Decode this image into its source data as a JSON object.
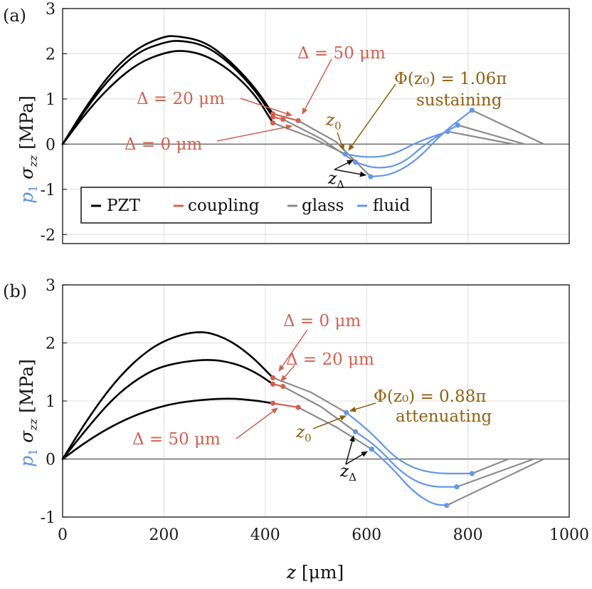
{
  "colors": {
    "pzt": "#000000",
    "coupling": "#D4614F",
    "glass": "#8C8C8C",
    "fluid": "#6497E8",
    "annot_brown": "#935F0E",
    "p1_blue": "#5B8FE6",
    "grid": "#DDDDDD",
    "zero_line": "#6E6E6E"
  },
  "axis_labels": {
    "y_p1": "p",
    "y_p1_sub": "1",
    "y_sigma": "σ",
    "y_sigma_sub": "zz",
    "y_unit": "[MPa]",
    "x_var": "z",
    "x_unit": "[μm]"
  },
  "legend": {
    "items": [
      {
        "label": "PZT",
        "color": "#000000"
      },
      {
        "label": "coupling",
        "color": "#D4614F"
      },
      {
        "label": "glass",
        "color": "#8C8C8C"
      },
      {
        "label": "fluid",
        "color": "#6497E8"
      }
    ]
  },
  "chart_data": [
    {
      "panel": "(a)",
      "type": "line",
      "xlim": [
        0,
        1000
      ],
      "ylim": [
        -2.2,
        3
      ],
      "yticks": [
        "3",
        "2",
        "1",
        "0",
        "-1",
        "-2"
      ],
      "xticks": [],
      "grid": true,
      "legend_placement": "lower-left",
      "series": [
        {
          "material": "PZT",
          "delta_um": 0,
          "x": [
            0,
            50,
            100,
            150,
            200,
            235,
            280,
            330,
            380,
            415
          ],
          "y": [
            0,
            0.75,
            1.35,
            1.8,
            2.02,
            2.08,
            1.98,
            1.65,
            1.1,
            0.47
          ]
        },
        {
          "material": "PZT",
          "delta_um": 20,
          "x": [
            0,
            50,
            100,
            150,
            200,
            228,
            280,
            330,
            380,
            415
          ],
          "y": [
            0,
            0.85,
            1.55,
            2.05,
            2.25,
            2.3,
            2.2,
            1.8,
            1.2,
            0.6
          ]
        },
        {
          "material": "PZT",
          "delta_um": 50,
          "x": [
            0,
            50,
            100,
            150,
            200,
            222,
            280,
            330,
            380,
            415
          ],
          "y": [
            0,
            0.9,
            1.65,
            2.15,
            2.38,
            2.4,
            2.28,
            1.85,
            1.25,
            0.67
          ]
        },
        {
          "material": "coupling",
          "delta_um": 0,
          "x": [
            415,
            415
          ],
          "y": [
            0.47,
            0.47
          ]
        },
        {
          "material": "coupling",
          "delta_um": 20,
          "x": [
            415,
            435
          ],
          "y": [
            0.6,
            0.55
          ]
        },
        {
          "material": "coupling",
          "delta_um": 50,
          "x": [
            415,
            465
          ],
          "y": [
            0.67,
            0.52
          ]
        },
        {
          "material": "glass",
          "delta_um": 0,
          "x": [
            415,
            490,
            558
          ],
          "y": [
            0.47,
            0.15,
            -0.22
          ]
        },
        {
          "material": "glass",
          "delta_um": 20,
          "x": [
            435,
            510,
            578
          ],
          "y": [
            0.55,
            0.12,
            -0.4
          ]
        },
        {
          "material": "glass",
          "delta_um": 50,
          "x": [
            465,
            540,
            608
          ],
          "y": [
            0.52,
            0.05,
            -0.72
          ]
        },
        {
          "material": "fluid",
          "delta_um": 0,
          "x": [
            558,
            600,
            650,
            700,
            760
          ],
          "y": [
            -0.22,
            -0.3,
            -0.25,
            0.05,
            0.28
          ]
        },
        {
          "material": "fluid",
          "delta_um": 20,
          "x": [
            578,
            620,
            670,
            720,
            780
          ],
          "y": [
            -0.4,
            -0.55,
            -0.45,
            0.05,
            0.42
          ]
        },
        {
          "material": "fluid",
          "delta_um": 50,
          "x": [
            608,
            650,
            700,
            750,
            808
          ],
          "y": [
            -0.72,
            -0.68,
            -0.35,
            0.25,
            0.75
          ]
        },
        {
          "material": "glass",
          "delta_um": 0,
          "x": [
            760,
            890
          ],
          "y": [
            0.28,
            0.0
          ]
        },
        {
          "material": "glass",
          "delta_um": 20,
          "x": [
            780,
            912
          ],
          "y": [
            0.42,
            0.0
          ]
        },
        {
          "material": "glass",
          "delta_um": 50,
          "x": [
            808,
            950
          ],
          "y": [
            0.75,
            0.0
          ]
        }
      ],
      "annotations": {
        "delta_50": "Δ = 50 μm",
        "delta_20": "Δ = 20 μm",
        "delta_0": "Δ = 0 μm",
        "phi": "Φ(z₀) = 1.06π",
        "phi_note": "sustaining",
        "z0": "z",
        "z0_sub": "0",
        "zdelta": "z",
        "zdelta_sub": "Δ"
      }
    },
    {
      "panel": "(b)",
      "type": "line",
      "xlim": [
        0,
        1000
      ],
      "ylim": [
        -1,
        3
      ],
      "yticks": [
        "3",
        "2",
        "1",
        "0",
        "-1"
      ],
      "xticks": [
        "0",
        "200",
        "400",
        "600",
        "800",
        "1000"
      ],
      "grid": true,
      "series": [
        {
          "material": "PZT",
          "delta_um": 0,
          "x": [
            0,
            50,
            100,
            150,
            200,
            268,
            320,
            370,
            415
          ],
          "y": [
            0,
            0.7,
            1.3,
            1.75,
            2.05,
            2.22,
            2.1,
            1.8,
            1.4
          ]
        },
        {
          "material": "PZT",
          "delta_um": 20,
          "x": [
            0,
            50,
            100,
            150,
            200,
            285,
            340,
            380,
            415
          ],
          "y": [
            0,
            0.55,
            1.05,
            1.4,
            1.62,
            1.73,
            1.65,
            1.5,
            1.29
          ]
        },
        {
          "material": "PZT",
          "delta_um": 50,
          "x": [
            0,
            50,
            100,
            150,
            200,
            250,
            325,
            380,
            415
          ],
          "y": [
            0,
            0.32,
            0.58,
            0.78,
            0.92,
            1.0,
            1.05,
            1.01,
            0.96
          ]
        },
        {
          "material": "coupling",
          "delta_um": 0,
          "x": [
            415,
            415
          ],
          "y": [
            1.4,
            1.4
          ]
        },
        {
          "material": "coupling",
          "delta_um": 20,
          "x": [
            415,
            435
          ],
          "y": [
            1.29,
            1.25
          ]
        },
        {
          "material": "coupling",
          "delta_um": 50,
          "x": [
            415,
            465
          ],
          "y": [
            0.96,
            0.89
          ]
        },
        {
          "material": "glass",
          "delta_um": 0,
          "x": [
            415,
            490,
            560
          ],
          "y": [
            1.4,
            1.15,
            0.8
          ]
        },
        {
          "material": "glass",
          "delta_um": 20,
          "x": [
            435,
            510,
            578
          ],
          "y": [
            1.25,
            0.9,
            0.47
          ]
        },
        {
          "material": "glass",
          "delta_um": 50,
          "x": [
            465,
            540,
            610
          ],
          "y": [
            0.89,
            0.55,
            0.17
          ]
        },
        {
          "material": "fluid",
          "delta_um": 0,
          "x": [
            560,
            610,
            660,
            720,
            808
          ],
          "y": [
            0.8,
            0.45,
            -0.02,
            -0.25,
            -0.25
          ]
        },
        {
          "material": "fluid",
          "delta_um": 20,
          "x": [
            578,
            620,
            670,
            720,
            778
          ],
          "y": [
            0.47,
            0.22,
            -0.25,
            -0.48,
            -0.48
          ]
        },
        {
          "material": "fluid",
          "delta_um": 50,
          "x": [
            610,
            650,
            690,
            730,
            758
          ],
          "y": [
            0.17,
            -0.15,
            -0.55,
            -0.78,
            -0.8
          ]
        },
        {
          "material": "glass",
          "delta_um": 0,
          "x": [
            808,
            880
          ],
          "y": [
            -0.25,
            0.0
          ]
        },
        {
          "material": "glass",
          "delta_um": 20,
          "x": [
            778,
            930
          ],
          "y": [
            -0.48,
            0.0
          ]
        },
        {
          "material": "glass",
          "delta_um": 50,
          "x": [
            758,
            950
          ],
          "y": [
            -0.8,
            0.0
          ]
        }
      ],
      "annotations": {
        "delta_0": "Δ = 0 μm",
        "delta_20": "Δ = 20 μm",
        "delta_50": "Δ = 50 μm",
        "phi": "Φ(z₀) = 0.88π",
        "phi_note": "attenuating",
        "z0": "z",
        "z0_sub": "0",
        "zdelta": "z",
        "zdelta_sub": "Δ"
      }
    }
  ]
}
